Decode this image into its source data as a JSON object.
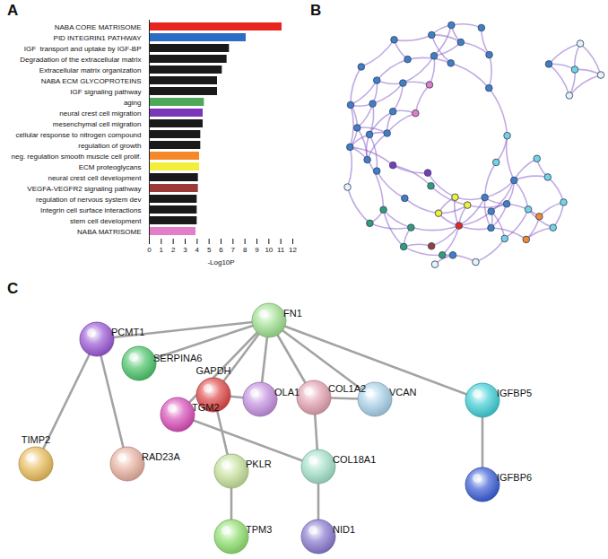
{
  "panel_labels": [
    "A",
    "B",
    "C"
  ],
  "chart_data": {
    "type": "bar",
    "orientation": "horizontal",
    "categories": [
      "NABA CORE MATRISOME",
      "PID INTEGRIN1 PATHWAY",
      "IGF  transport and uptake by IGF-BP",
      "Degradation of the extracellular matrix",
      "Extracellular matrix organization",
      "NABA ECM GLYCOPROTEINS",
      "IGF signaling pathway",
      "aging",
      "neural crest cell migration",
      "mesenchymal cell migration",
      "cellular response to nitrogen compound",
      "regulation of growth",
      "neg. regulation smooth muscle cell prolif.",
      "ECM proteoglycans",
      "neural crest cell development",
      "VEGFA-VEGFR2 signaling pathway",
      "regulation of nervous system dev",
      "Integrin cell surface interactions",
      "stem cell development",
      "NABA MATRISOME"
    ],
    "values": [
      11.1,
      8.1,
      6.7,
      6.5,
      6.1,
      5.7,
      5.7,
      4.6,
      4.5,
      4.5,
      4.3,
      4.3,
      4.2,
      4.2,
      4.1,
      4.1,
      4.0,
      4.0,
      4.0,
      3.9
    ],
    "colors": [
      "#e8261f",
      "#2b6cc4",
      "#1a1a1a",
      "#1a1a1a",
      "#1a1a1a",
      "#1a1a1a",
      "#1a1a1a",
      "#4fa85a",
      "#7a35b8",
      "#1a1a1a",
      "#1a1a1a",
      "#1a1a1a",
      "#f5892a",
      "#f2ee3a",
      "#1a1a1a",
      "#9c3a3a",
      "#1a1a1a",
      "#1a1a1a",
      "#1a1a1a",
      "#e27fc8"
    ],
    "xlim": [
      0,
      12
    ],
    "xticks": [
      0,
      1,
      2,
      3,
      4,
      5,
      6,
      7,
      8,
      9,
      10,
      11,
      12
    ],
    "xlabel": "-Log10P"
  },
  "network_b": {
    "type": "network",
    "node_colors": [
      "#e8261f",
      "#3f7fc6",
      "#3f7fc6",
      "#3f7fc6",
      "#3f7fc6",
      "#3f7fc6",
      "#3f7fc6",
      "#3f7fc6",
      "#3f7fc6",
      "#3f7fc6",
      "#3f7fc6",
      "#3f7fc6",
      "#3f7fc6",
      "#3f7fc6",
      "#3f7fc6",
      "#3f7fc6",
      "#3f7fc6",
      "#74d3e3",
      "#74d3e3",
      "#74d3e3",
      "#74d3e3",
      "#74d3e3",
      "#2e9e77",
      "#2e9e77",
      "#2e9e77",
      "#2e9e77",
      "#eef03a",
      "#eef03a",
      "#eef03a",
      "#f08a2c",
      "#f08a2c",
      "#e07cc4",
      "#e07cc4",
      "#7b3bb8",
      "#7b3bb8",
      "#9a3d3d",
      "#3f7fc6",
      "#3f7fc6",
      "#3f7fc6",
      "#3f7fc6",
      "#3f7fc6",
      "#74d3e3",
      "#74d3e3",
      "#3f7fc6",
      "#3f7fc6",
      "#2e9e77",
      "#e3f5fa",
      "#e3f5fa",
      "#3f7fc6",
      "#3f7fc6",
      "#74d3e3",
      "#3f7fc6",
      "#3f7fc6",
      "#2e9e77",
      "#3f7fc6",
      "#e3f5fa",
      "#e3f5fa",
      "#e3f5fa",
      "#74d3e3",
      "#3f7fc6",
      "#3f7fc6",
      "#e3f5fa"
    ],
    "edges": [
      [
        1,
        2
      ],
      [
        1,
        3
      ],
      [
        2,
        3
      ],
      [
        2,
        4
      ],
      [
        3,
        4
      ],
      [
        3,
        5
      ],
      [
        4,
        5
      ],
      [
        4,
        6
      ],
      [
        5,
        6
      ],
      [
        5,
        7
      ],
      [
        6,
        7
      ],
      [
        6,
        8
      ],
      [
        7,
        8
      ],
      [
        7,
        9
      ],
      [
        8,
        9
      ],
      [
        8,
        10
      ],
      [
        9,
        10
      ],
      [
        1,
        10
      ],
      [
        2,
        6
      ],
      [
        3,
        8
      ],
      [
        10,
        11
      ],
      [
        11,
        12
      ],
      [
        12,
        13
      ],
      [
        13,
        14
      ],
      [
        14,
        15
      ],
      [
        15,
        16
      ],
      [
        16,
        9
      ],
      [
        11,
        13
      ],
      [
        12,
        14
      ],
      [
        32,
        11
      ],
      [
        31,
        1
      ],
      [
        31,
        2
      ],
      [
        32,
        10
      ],
      [
        32,
        31
      ],
      [
        22,
        23
      ],
      [
        23,
        24
      ],
      [
        24,
        25
      ],
      [
        22,
        24
      ],
      [
        25,
        0
      ],
      [
        23,
        0
      ],
      [
        22,
        4
      ],
      [
        26,
        0
      ],
      [
        27,
        0
      ],
      [
        28,
        0
      ],
      [
        26,
        27
      ],
      [
        27,
        28
      ],
      [
        26,
        36
      ],
      [
        28,
        38
      ],
      [
        36,
        37
      ],
      [
        37,
        38
      ],
      [
        38,
        39
      ],
      [
        39,
        40
      ],
      [
        36,
        38
      ],
      [
        37,
        39
      ],
      [
        38,
        40
      ],
      [
        36,
        40
      ],
      [
        0,
        36
      ],
      [
        0,
        37
      ],
      [
        0,
        39
      ],
      [
        17,
        18
      ],
      [
        18,
        19
      ],
      [
        19,
        20
      ],
      [
        20,
        21
      ],
      [
        17,
        39
      ],
      [
        18,
        40
      ],
      [
        19,
        29
      ],
      [
        20,
        30
      ],
      [
        21,
        40
      ],
      [
        29,
        30
      ],
      [
        29,
        37
      ],
      [
        30,
        38
      ],
      [
        33,
        34
      ],
      [
        33,
        5
      ],
      [
        34,
        26
      ],
      [
        35,
        0
      ],
      [
        35,
        24
      ],
      [
        41,
        42
      ],
      [
        41,
        36
      ],
      [
        42,
        43
      ],
      [
        43,
        44
      ],
      [
        44,
        13
      ],
      [
        43,
        15
      ],
      [
        45,
        23
      ],
      [
        45,
        22
      ],
      [
        46,
        45
      ],
      [
        47,
        25
      ],
      [
        47,
        17
      ],
      [
        48,
        49
      ],
      [
        48,
        7
      ],
      [
        49,
        16
      ],
      [
        50,
        21
      ],
      [
        50,
        40
      ],
      [
        51,
        52
      ],
      [
        51,
        3
      ],
      [
        52,
        27
      ],
      [
        53,
        28
      ],
      [
        53,
        33
      ],
      [
        54,
        44
      ],
      [
        54,
        12
      ],
      [
        42,
        40
      ],
      [
        49,
        14
      ],
      [
        46,
        5
      ],
      [
        55,
        56
      ],
      [
        55,
        57
      ],
      [
        55,
        58
      ],
      [
        56,
        58
      ],
      [
        57,
        58
      ],
      [
        56,
        59
      ],
      [
        57,
        59
      ],
      [
        58,
        59
      ],
      [
        60,
        61
      ]
    ]
  },
  "network_c": {
    "type": "network",
    "nodes": [
      {
        "label": "FN1",
        "color": "#9fdf8f"
      },
      {
        "label": "PCMT1",
        "color": "#9b59d6"
      },
      {
        "label": "SERPINA6",
        "color": "#4cc56a"
      },
      {
        "label": "GAPDH",
        "color": "#e04848"
      },
      {
        "label": "TGM2",
        "color": "#d94fb8"
      },
      {
        "label": "OLA1",
        "color": "#c38fe0"
      },
      {
        "label": "COL1A2",
        "color": "#e3a0b0"
      },
      {
        "label": "VCAN",
        "color": "#a7d0e8"
      },
      {
        "label": "IGFBP5",
        "color": "#3fcfd6"
      },
      {
        "label": "TIMP2",
        "color": "#e8bc5a"
      },
      {
        "label": "RAD23A",
        "color": "#e8b0a0"
      },
      {
        "label": "PKLR",
        "color": "#c5e09a"
      },
      {
        "label": "COL18A1",
        "color": "#a0e0c8"
      },
      {
        "label": "IGFBP6",
        "color": "#3c5fd6"
      },
      {
        "label": "TPM3",
        "color": "#8fe070"
      },
      {
        "label": "NID1",
        "color": "#8a7ad0"
      }
    ],
    "edges": [
      [
        "FN1",
        "PCMT1"
      ],
      [
        "FN1",
        "SERPINA6"
      ],
      [
        "FN1",
        "GAPDH"
      ],
      [
        "FN1",
        "TGM2"
      ],
      [
        "FN1",
        "OLA1"
      ],
      [
        "FN1",
        "COL1A2"
      ],
      [
        "FN1",
        "VCAN"
      ],
      [
        "FN1",
        "IGFBP5"
      ],
      [
        "PCMT1",
        "TIMP2"
      ],
      [
        "PCMT1",
        "RAD23A"
      ],
      [
        "GAPDH",
        "OLA1"
      ],
      [
        "GAPDH",
        "PKLR"
      ],
      [
        "TGM2",
        "COL18A1"
      ],
      [
        "COL1A2",
        "VCAN"
      ],
      [
        "COL1A2",
        "COL18A1"
      ],
      [
        "IGFBP5",
        "IGFBP6"
      ],
      [
        "PKLR",
        "TPM3"
      ],
      [
        "COL18A1",
        "NID1"
      ]
    ]
  }
}
